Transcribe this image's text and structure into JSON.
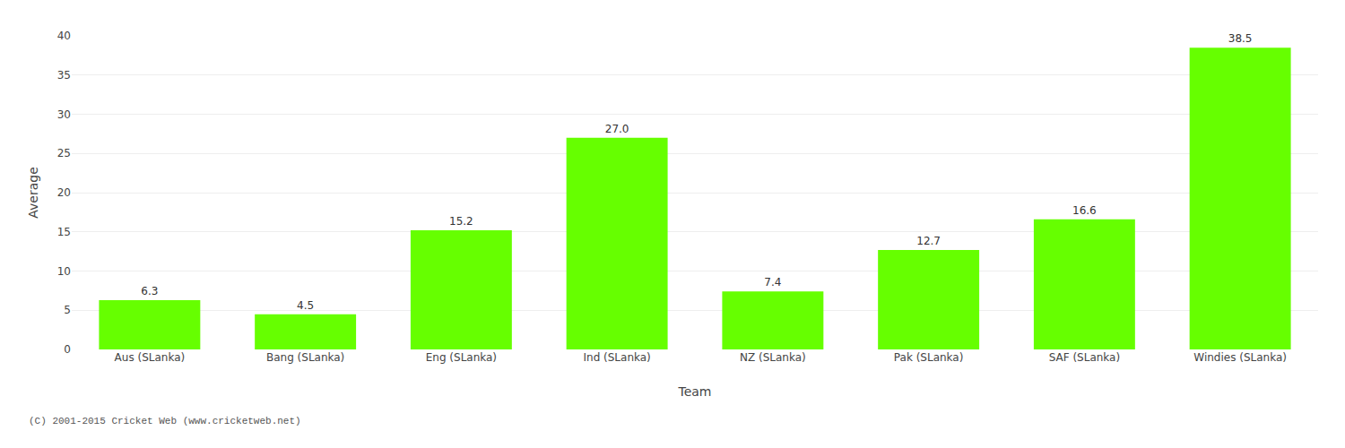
{
  "chart_data": {
    "type": "bar",
    "categories": [
      "Aus (SLanka)",
      "Bang (SLanka)",
      "Eng (SLanka)",
      "Ind (SLanka)",
      "NZ (SLanka)",
      "Pak (SLanka)",
      "SAF (SLanka)",
      "Windies (SLanka)"
    ],
    "values": [
      6.3,
      4.5,
      15.2,
      27.0,
      7.4,
      12.7,
      16.6,
      38.5
    ],
    "value_labels": [
      "6.3",
      "4.5",
      "15.2",
      "27.0",
      "7.4",
      "12.7",
      "16.6",
      "38.5"
    ],
    "data_labels": true,
    "color": "#66ff00",
    "xlabel": "Team",
    "ylabel": "Average",
    "ylim": [
      0,
      40
    ],
    "yticks": [
      0,
      5,
      10,
      15,
      20,
      25,
      30,
      35,
      40
    ],
    "grid": true,
    "annotations": [
      "(C) 2001-2015 Cricket Web (www.cricketweb.net)"
    ]
  }
}
